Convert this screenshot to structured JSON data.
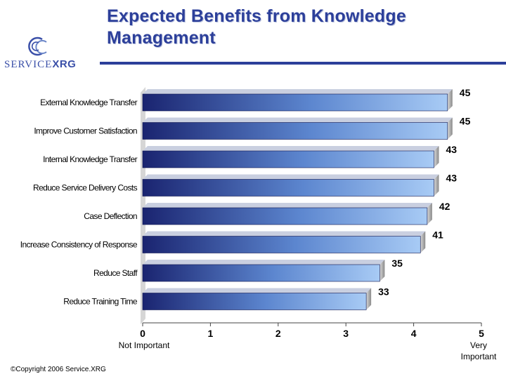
{
  "header": {
    "title_line1": "Expected Benefits from Knowledge",
    "title_line2": "Management"
  },
  "logo": {
    "text_light": "SERVICE",
    "text_bold": "XRG",
    "icon": "service-xrg-swirl-logo"
  },
  "footer": {
    "copyright": "©Copyright 2006 Service.XRG"
  },
  "scale_labels": {
    "low": "Not Important",
    "high": "Very Important"
  },
  "chart_data": {
    "type": "bar",
    "orientation": "horizontal",
    "title": "",
    "xlabel": "",
    "ylabel": "",
    "categories": [
      "External Knowledge Transfer",
      "Improve Customer Satisfaction",
      "Internal Knowledge Transfer",
      "Reduce Service Delivery Costs",
      "Case Deflection",
      "Increase Consistency of Response",
      "Reduce Staff",
      "Reduce Training Time"
    ],
    "values": [
      4.5,
      4.5,
      4.3,
      4.3,
      4.2,
      4.1,
      3.5,
      3.3
    ],
    "data_labels": [
      "45",
      "45",
      "43",
      "43",
      "42",
      "41",
      "35",
      "33"
    ],
    "xlim": [
      0,
      5
    ],
    "x_ticks": [
      "0",
      "1",
      "2",
      "3",
      "4",
      "5"
    ],
    "grid": false,
    "legend": "none",
    "bar_gradient": [
      "#1a2470",
      "#a8cbf5"
    ]
  }
}
